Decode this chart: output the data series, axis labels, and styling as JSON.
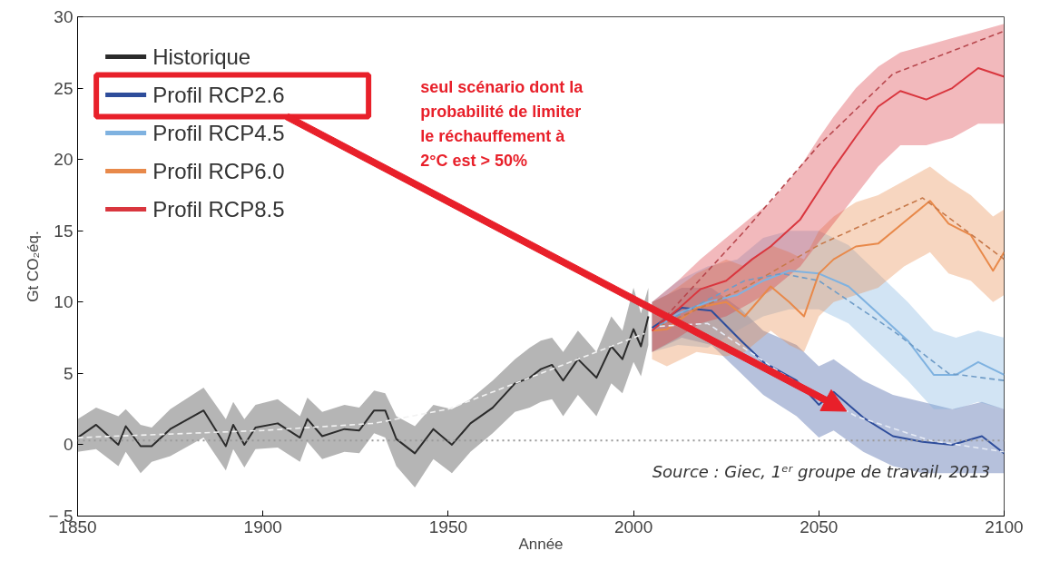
{
  "chart_data": {
    "type": "line",
    "xlabel": "Année",
    "ylabel": "Gt CO₂éq.",
    "xlim": [
      1850,
      2100
    ],
    "xticks": [
      1850,
      1900,
      1950,
      2000,
      2050,
      2100
    ],
    "ylim": [
      -5,
      30
    ],
    "yticks": [
      {
        "value": -5,
        "label": "− 5"
      },
      0,
      5,
      10,
      15,
      20,
      25,
      30
    ],
    "grid": false,
    "legend": "top left",
    "line_style": "solid",
    "ref_lines": [
      {
        "axis": "y",
        "value": 0.3,
        "line_style": "dotted",
        "color": "#9a9a9a"
      }
    ],
    "annotations": [
      "seul scénario dont la\nprobabilité de limiter\nle réchauffement à\n2°C est > 50%",
      "Source : Giec, 1ᵉʳ groupe de travail, 2013"
    ],
    "series": [
      {
        "name": "Historique",
        "color": "#2b2b2b",
        "x": [
          1850,
          1855,
          1861,
          1863,
          1867,
          1870,
          1875,
          1884,
          1890,
          1892,
          1895,
          1898,
          1904,
          1910,
          1912,
          1916,
          1922,
          1926,
          1930,
          1933,
          1936,
          1941,
          1946,
          1951,
          1956,
          1962,
          1968,
          1972,
          1975,
          1978,
          1981,
          1985,
          1990,
          1994,
          1997,
          2000,
          2002,
          2004
        ],
        "values": [
          0.5,
          1.4,
          0,
          1.3,
          -0.1,
          -0.1,
          1.1,
          2.4,
          -0.1,
          1.4,
          0,
          1.2,
          1.5,
          0.5,
          1.8,
          0.6,
          1.1,
          1.0,
          2.4,
          2.4,
          0.4,
          -0.6,
          1.1,
          0,
          1.5,
          2.6,
          4.3,
          4.7,
          5.3,
          5.6,
          4.5,
          6.0,
          4.7,
          6.9,
          6.0,
          8.1,
          6.9,
          9.0
        ],
        "lower": [
          -0.5,
          -0.3,
          -1.5,
          -0.5,
          -2.0,
          -1.2,
          -0.8,
          0.5,
          -1.8,
          -0.3,
          -1.6,
          -0.3,
          -0.2,
          -1.2,
          0.2,
          -1.0,
          -0.5,
          -0.6,
          0.8,
          0.5,
          -1.5,
          -3.0,
          -1.0,
          -2.0,
          -0.5,
          0.8,
          2.3,
          2.6,
          3.0,
          3.2,
          2.0,
          3.5,
          2.0,
          4.3,
          3.6,
          5.8,
          4.8,
          7.0
        ],
        "upper": [
          1.8,
          2.6,
          2.0,
          2.5,
          1.4,
          1.2,
          2.5,
          4.0,
          1.8,
          3.0,
          1.8,
          2.8,
          3.2,
          2.0,
          3.3,
          2.3,
          2.8,
          2.6,
          3.8,
          3.6,
          2.0,
          1.3,
          2.8,
          2.5,
          3.2,
          4.5,
          6.0,
          6.8,
          7.3,
          7.5,
          6.5,
          8.0,
          6.5,
          9.0,
          8.0,
          11.0,
          9.2,
          11.0
        ]
      },
      {
        "name": "Profil RCP2.6",
        "color": "#2e4d9b",
        "x": [
          2005,
          2013,
          2021,
          2029,
          2035,
          2044,
          2050,
          2054,
          2062,
          2070,
          2078,
          2086,
          2094,
          2100
        ],
        "values": [
          8.2,
          9.6,
          9.4,
          7.3,
          5.8,
          4.5,
          2.8,
          3.7,
          1.9,
          0.6,
          0.2,
          0,
          0.6,
          -0.6
        ],
        "lower": [
          6.5,
          7.5,
          7.0,
          5.0,
          3.5,
          2.0,
          0.5,
          1.0,
          -0.5,
          -1.5,
          -2.0,
          -2.0,
          -2.0,
          -2.0
        ],
        "upper": [
          10,
          11,
          11,
          9.5,
          8.0,
          7.0,
          5.5,
          6.0,
          4.5,
          3.5,
          3.0,
          2.5,
          3.0,
          2.5
        ]
      },
      {
        "name": "Profil RCP4.5",
        "color": "#7fb2e0",
        "x": [
          2005,
          2012,
          2020,
          2028,
          2035,
          2042,
          2050,
          2058,
          2066,
          2074,
          2081,
          2087,
          2093,
          2100
        ],
        "values": [
          8,
          9.2,
          10.0,
          10.5,
          11.5,
          12.2,
          12.0,
          11.1,
          9.2,
          7.3,
          4.9,
          4.9,
          5.8,
          4.9
        ],
        "lower": [
          6.5,
          7,
          6.8,
          8.0,
          9.0,
          9.5,
          9.5,
          8.5,
          6.5,
          4.5,
          2.5,
          2.5,
          3.0,
          2.5
        ],
        "upper": [
          10,
          11.5,
          12.5,
          13.0,
          14.5,
          15.0,
          15.0,
          14.0,
          12.0,
          10.0,
          8.0,
          7.5,
          8.0,
          7.5
        ]
      },
      {
        "name": "Profil RCP6.0",
        "color": "#e8894a",
        "x": [
          2005,
          2009,
          2017,
          2025,
          2030,
          2037,
          2042,
          2046,
          2050,
          2054,
          2060,
          2066,
          2073,
          2080,
          2085,
          2091,
          2097,
          2100
        ],
        "values": [
          8,
          8.1,
          9.6,
          10.0,
          9.0,
          11.1,
          10,
          9.0,
          12.0,
          13.0,
          13.9,
          14.1,
          15.6,
          17.1,
          15.5,
          14.7,
          12.2,
          13.5
        ],
        "lower": [
          6.0,
          5.5,
          6.5,
          6.2,
          6.5,
          8.0,
          7.0,
          6.5,
          9.0,
          10.0,
          10.5,
          11.0,
          12.5,
          13.5,
          12.0,
          11.5,
          10.0,
          10.5
        ],
        "upper": [
          10,
          10.5,
          12.0,
          13.0,
          12.5,
          14.0,
          13.5,
          13.0,
          15.0,
          16.0,
          17.0,
          17.5,
          18.5,
          19.5,
          18.5,
          17.5,
          16.0,
          16.5
        ]
      },
      {
        "name": "Profil RCP8.5",
        "color": "#d9363e",
        "x": [
          2005,
          2012,
          2018,
          2025,
          2032,
          2037,
          2045,
          2050,
          2054,
          2060,
          2066,
          2072,
          2079,
          2086,
          2093,
          2100
        ],
        "values": [
          8,
          9.5,
          10.9,
          11.5,
          13.0,
          13.9,
          15.8,
          17.8,
          19.4,
          21.6,
          23.7,
          24.8,
          24.2,
          25.0,
          26.4,
          25.8
        ],
        "lower": [
          6.5,
          7.5,
          8.5,
          9.0,
          10.0,
          10.8,
          12.5,
          14.2,
          15.5,
          17.5,
          19.5,
          21.0,
          21.0,
          21.5,
          22.5,
          22.5
        ],
        "upper": [
          10,
          11.5,
          13.0,
          14.5,
          16.0,
          17.0,
          19.5,
          21.5,
          23.0,
          25.0,
          26.5,
          27.5,
          28.0,
          28.5,
          29.0,
          29.5
        ]
      },
      {
        "type": "line",
        "line_style": "dashed",
        "color": "#f2f2f2",
        "x": [
          1850,
          1900,
          1930,
          1950,
          1970,
          1990,
          2003
        ],
        "values": [
          0.5,
          1.0,
          1.5,
          2.5,
          4.5,
          6.5,
          7.8
        ]
      },
      {
        "type": "line",
        "line_style": "dashed",
        "color": "#b8484e",
        "x": [
          2007,
          2030,
          2050,
          2070,
          2100
        ],
        "values": [
          8.5,
          15,
          21,
          26,
          29
        ]
      },
      {
        "type": "line",
        "line_style": "dashed",
        "color": "#c7794a",
        "x": [
          2007,
          2030,
          2050,
          2078,
          2100
        ],
        "values": [
          8.3,
          11,
          14,
          17.3,
          13
        ]
      },
      {
        "type": "line",
        "line_style": "dashed",
        "color": "#6f9cc7",
        "x": [
          2007,
          2030,
          2040,
          2050,
          2070,
          2085,
          2100
        ],
        "values": [
          8.4,
          11.5,
          12,
          11.5,
          8,
          5,
          4.5
        ]
      },
      {
        "type": "line",
        "line_style": "dashed",
        "color": "#e6ebf5",
        "x": [
          2007,
          2020,
          2040,
          2060,
          2080,
          2100
        ],
        "values": [
          8.3,
          8.5,
          5,
          2,
          0.3,
          -0.5
        ]
      }
    ]
  }
}
